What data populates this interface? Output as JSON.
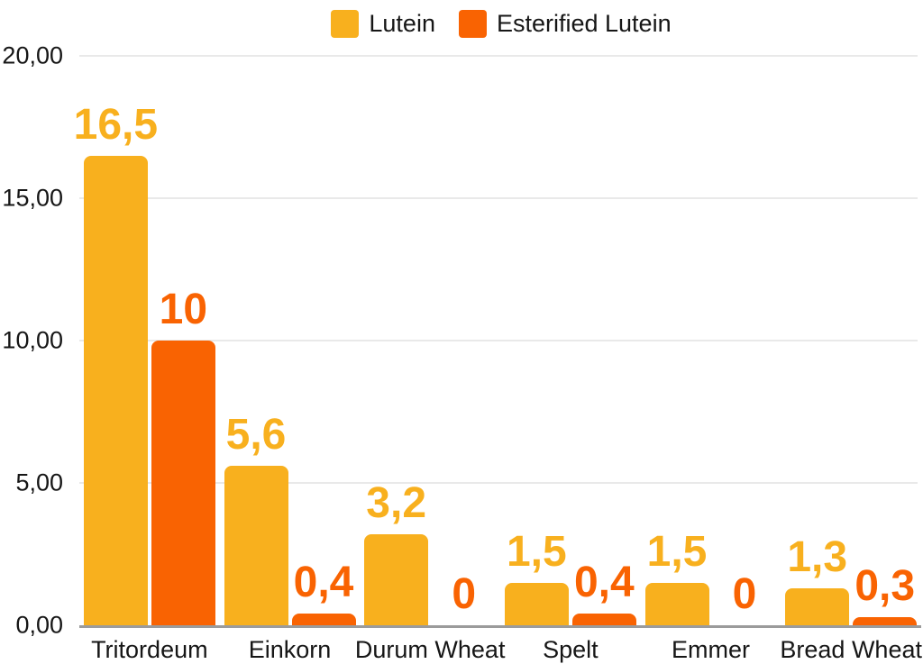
{
  "chart_data": {
    "type": "bar",
    "title": "",
    "categories": [
      "Tritordeum",
      "Einkorn",
      "Durum Wheat",
      "Spelt",
      "Emmer",
      "Bread Wheat"
    ],
    "series": [
      {
        "name": "Lutein",
        "color": "#F8B01E",
        "values": [
          16.5,
          5.6,
          3.2,
          1.5,
          1.5,
          1.3
        ],
        "value_labels": [
          "16,5",
          "5,6",
          "3,2",
          "1,5",
          "1,5",
          "1,3"
        ]
      },
      {
        "name": "Esterified Lutein",
        "color": "#F96302",
        "values": [
          10,
          0.4,
          0,
          0.4,
          0,
          0.3
        ],
        "value_labels": [
          "10",
          "0,4",
          "0",
          "0,4",
          "0",
          "0,3"
        ]
      }
    ],
    "xlabel": "",
    "ylabel": "",
    "ylim": [
      0,
      20
    ],
    "yticks": [
      {
        "value": 20,
        "label": "20,00"
      },
      {
        "value": 15,
        "label": "15,00"
      },
      {
        "value": 10,
        "label": "10,00"
      },
      {
        "value": 5,
        "label": "5,00"
      },
      {
        "value": 0,
        "label": "0,00"
      }
    ],
    "grid": "horizontal",
    "legend_position": "top",
    "decimal_separator": ","
  },
  "colors": {
    "baseline": "#9B9B9B",
    "gridline": "#E9E9E9",
    "text": "#161616",
    "background": "#FFFFFF"
  }
}
